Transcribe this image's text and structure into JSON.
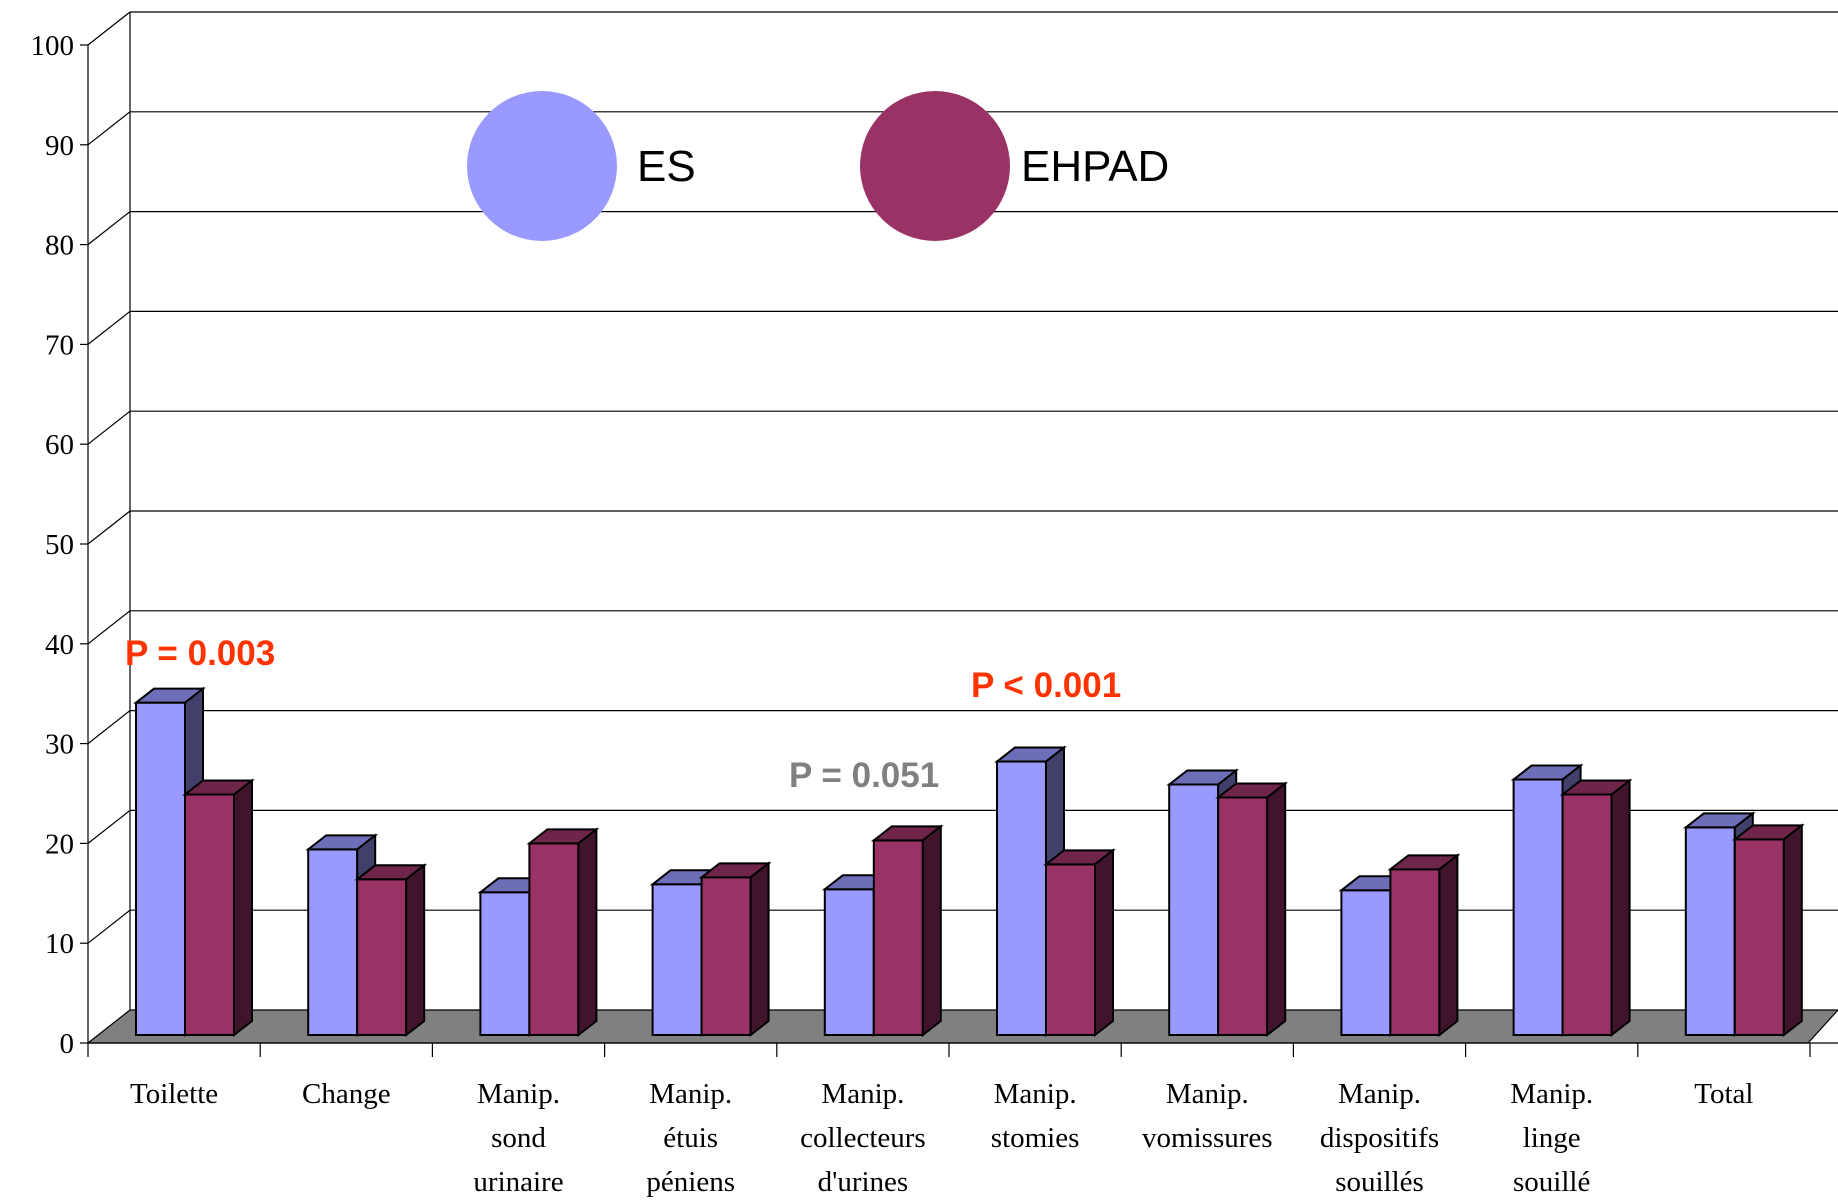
{
  "chart_data": {
    "type": "bar",
    "categories": [
      [
        "Toilette"
      ],
      [
        "Change"
      ],
      [
        "Manip.",
        "sond",
        "urinaire"
      ],
      [
        "Manip.",
        "étuis",
        "péniens"
      ],
      [
        "Manip.",
        "collecteurs",
        "d'urines"
      ],
      [
        "Manip.",
        "stomies"
      ],
      [
        "Manip.",
        "vomissures"
      ],
      [
        "Manip.",
        "dispositifs",
        "souillés"
      ],
      [
        "Manip.",
        "linge",
        "souillé"
      ],
      [
        "Total"
      ]
    ],
    "series": [
      {
        "name": "ES",
        "color": "#9999ff",
        "values": [
          33.3,
          18.6,
          14.3,
          15.1,
          14.6,
          27.4,
          25.1,
          14.5,
          25.6,
          20.8
        ]
      },
      {
        "name": "EHPAD",
        "color": "#993366",
        "values": [
          24.1,
          15.6,
          19.2,
          15.8,
          19.5,
          17.1,
          23.8,
          16.6,
          24.1,
          19.6
        ]
      }
    ],
    "ylim": [
      0,
      100
    ],
    "yticks": [
      "0",
      "10",
      "20",
      "30",
      "40",
      "50",
      "60",
      "70",
      "80",
      "90",
      "100"
    ],
    "grid": true,
    "legend_position": "top",
    "annotations": [
      {
        "text": "P = 0.003",
        "color": "#ff3300",
        "near_category": 0
      },
      {
        "text": "P = 0.051",
        "color": "#808080",
        "near_category": 4
      },
      {
        "text": "P < 0.001",
        "color": "#ff3300",
        "near_category": 5
      }
    ],
    "title": "",
    "xlabel": "",
    "ylabel": ""
  }
}
